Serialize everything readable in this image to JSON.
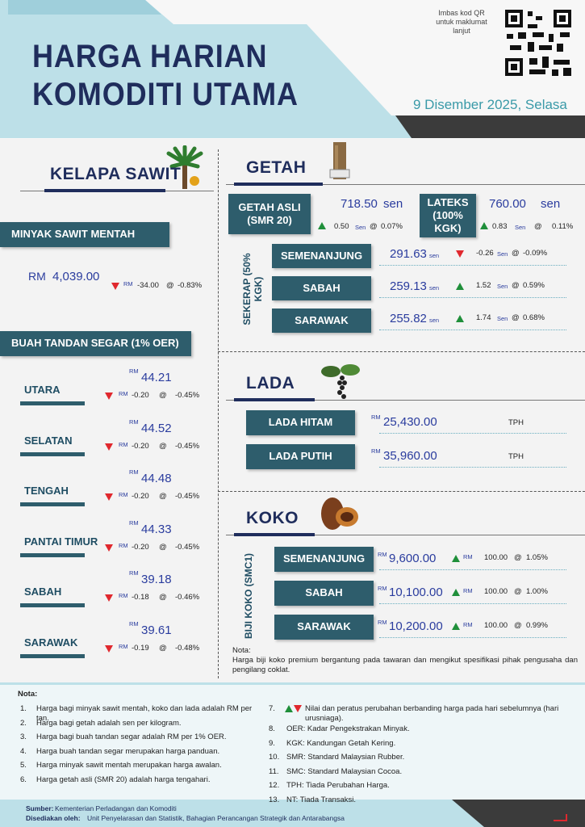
{
  "header": {
    "title": [
      "HARGA HARIAN",
      "KOMODITI UTAMA"
    ],
    "qr_text": "Imbas kod QR untuk maklumat lanjut",
    "date": "9 Disember 2025, Selasa"
  },
  "currency": "RM",
  "at": "@",
  "kelapa_sawit": {
    "title": "KELAPA SAWIT",
    "msm": {
      "label": "MINYAK SAWIT MENTAH",
      "price": "4,039.00",
      "change": "-34.00",
      "pct": "-0.83%",
      "trend": "down"
    },
    "bts": {
      "label": "BUAH TANDAN SEGAR (1% OER)",
      "regions": [
        {
          "name": "UTARA",
          "price": "44.21",
          "change": "-0.20",
          "pct": "-0.45%",
          "trend": "down"
        },
        {
          "name": "SELATAN",
          "price": "44.52",
          "change": "-0.20",
          "pct": "-0.45%",
          "trend": "down"
        },
        {
          "name": "TENGAH",
          "price": "44.48",
          "change": "-0.20",
          "pct": "-0.45%",
          "trend": "down"
        },
        {
          "name": "PANTAI TIMUR",
          "price": "44.33",
          "change": "-0.20",
          "pct": "-0.45%",
          "trend": "down"
        },
        {
          "name": "SABAH",
          "price": "39.18",
          "change": "-0.18",
          "pct": "-0.46%",
          "trend": "down"
        },
        {
          "name": "SARAWAK",
          "price": "39.61",
          "change": "-0.19",
          "pct": "-0.48%",
          "trend": "down"
        }
      ]
    }
  },
  "getah": {
    "title": "GETAH",
    "unit": "sen",
    "change_unit": "Sen",
    "smr20": {
      "label": "GETAH ASLI (SMR 20)",
      "price": "718.50",
      "change": "0.50",
      "pct": "0.07%",
      "trend": "up"
    },
    "lateks": {
      "label": "LATEKS (100% KGK)",
      "price": "760.00",
      "change": "0.83",
      "pct": "0.11%",
      "trend": "up"
    },
    "sekerap": {
      "label": "SEKERAP (50% KGK)",
      "rows": [
        {
          "name": "SEMENANJUNG",
          "price": "291.63",
          "change": "-0.26",
          "pct": "-0.09%",
          "trend": "down"
        },
        {
          "name": "SABAH",
          "price": "259.13",
          "change": "1.52",
          "pct": "0.59%",
          "trend": "up"
        },
        {
          "name": "SARAWAK",
          "price": "255.82",
          "change": "1.74",
          "pct": "0.68%",
          "trend": "up"
        }
      ]
    }
  },
  "lada": {
    "title": "LADA",
    "rows": [
      {
        "name": "LADA HITAM",
        "price": "25,430.00",
        "status": "TPH"
      },
      {
        "name": "LADA PUTIH",
        "price": "35,960.00",
        "status": "TPH"
      }
    ]
  },
  "koko": {
    "title": "KOKO",
    "label": "BIJI KOKO (SMC1)",
    "rows": [
      {
        "name": "SEMENANJUNG",
        "price": "9,600.00",
        "change": "100.00",
        "pct": "1.05%",
        "trend": "up"
      },
      {
        "name": "SABAH",
        "price": "10,100.00",
        "change": "100.00",
        "pct": "1.00%",
        "trend": "up"
      },
      {
        "name": "SARAWAK",
        "price": "10,200.00",
        "change": "100.00",
        "pct": "0.99%",
        "trend": "up"
      }
    ],
    "note_title": "Nota:",
    "note": "Harga biji koko premium bergantung pada tawaran dan mengikut spesifikasi pihak pengusaha dan pengilang coklat."
  },
  "notes": {
    "title": "Nota:",
    "items": [
      {
        "n": "1.",
        "text": "Harga bagi minyak sawit mentah, koko dan lada adalah RM per tan."
      },
      {
        "n": "2.",
        "text": "Harga bagi getah adalah sen per kilogram."
      },
      {
        "n": "3.",
        "text": "Harga bagi buah tandan segar adalah RM per 1% OER."
      },
      {
        "n": "4.",
        "text": "Harga buah tandan segar merupakan harga panduan."
      },
      {
        "n": "5.",
        "text": "Harga minyak sawit mentah merupakan harga awalan."
      },
      {
        "n": "6.",
        "text": "Harga getah asli (SMR 20) adalah harga tengahari."
      },
      {
        "n": "7.",
        "text": "Nilai dan peratus perubahan berbanding harga pada hari sebelumnya (hari urusniaga)."
      },
      {
        "n": "8.",
        "text": "OER: Kadar Pengekstrakan Minyak."
      },
      {
        "n": "9.",
        "text": "KGK: Kandungan Getah Kering."
      },
      {
        "n": "10.",
        "text": "SMR: Standard Malaysian Rubber."
      },
      {
        "n": "11.",
        "text": "SMC: Standard Malaysian Cocoa."
      },
      {
        "n": "12.",
        "text": "TPH: Tiada Perubahan Harga."
      },
      {
        "n": "13.",
        "text": "NT: Tiada Transaksi."
      }
    ]
  },
  "footer": {
    "source_label": "Sumber:",
    "source": "Kementerian Perladangan dan Komoditi",
    "prepared_label": "Disediakan oleh:",
    "prepared": "Unit Penyelarasan dan Statistik, Bahagian Perancangan Strategik dan Antarabangsa"
  }
}
